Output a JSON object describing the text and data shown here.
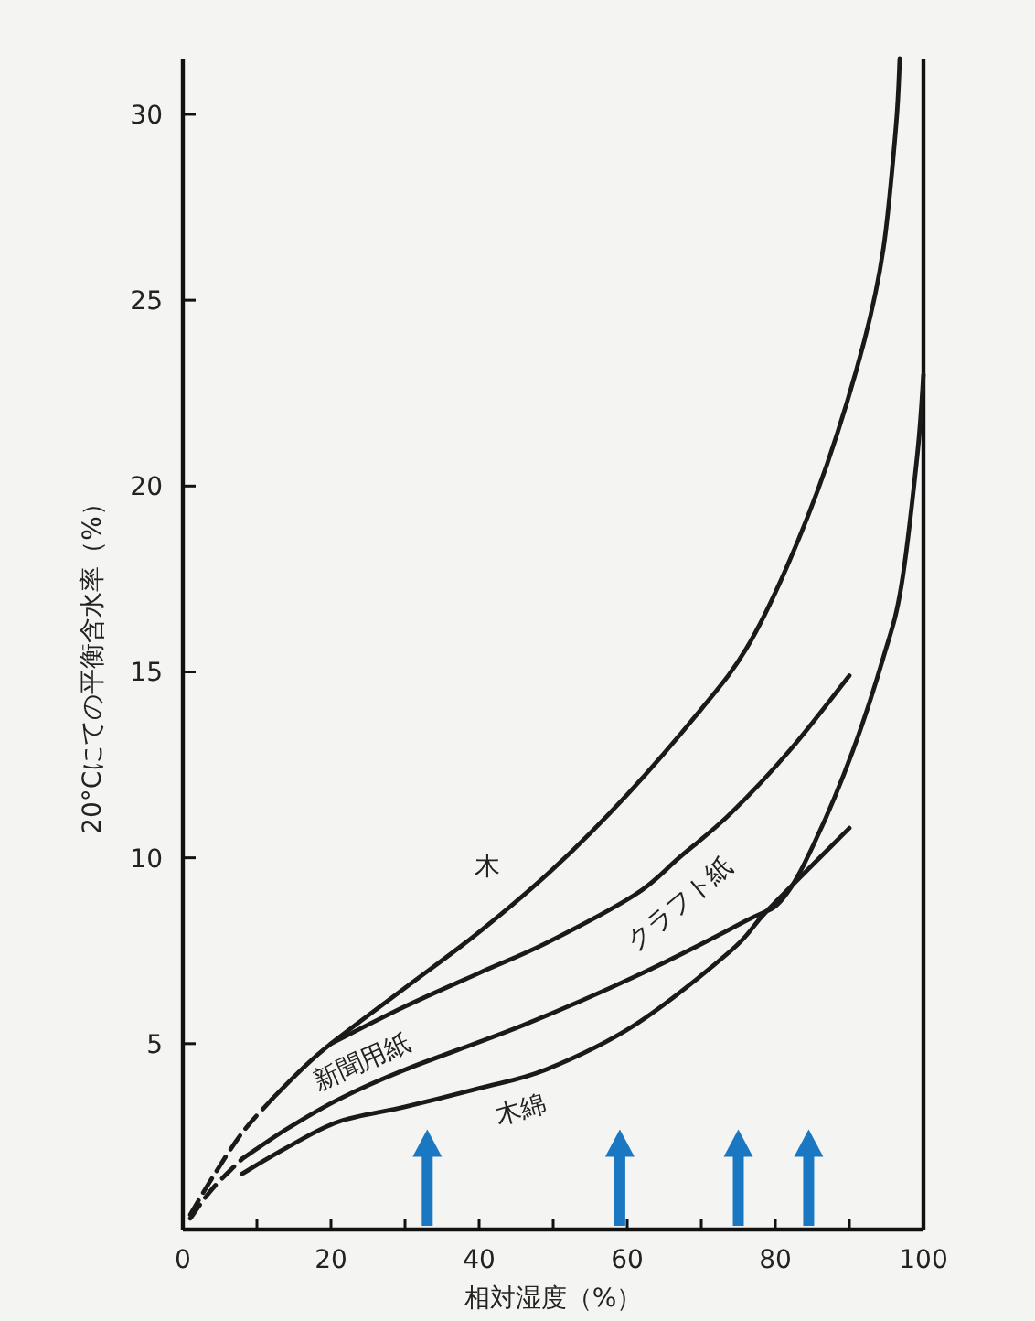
{
  "chart_data": {
    "type": "line",
    "xlabel": "相対湿度（%）",
    "ylabel": "20°Cにての平衡含水率（%）",
    "xlim": [
      0,
      100
    ],
    "ylim": [
      0,
      31.5
    ],
    "xticks": [
      0,
      {
        "value": 10,
        "label": null
      },
      20,
      {
        "value": 30,
        "label": null
      },
      40,
      {
        "value": 50,
        "label": null
      },
      60,
      {
        "value": 70,
        "label": null
      },
      80,
      {
        "value": 90,
        "label": null
      },
      100
    ],
    "yticks": [
      5,
      10,
      15,
      20,
      25,
      30
    ],
    "grid": false,
    "marker": "none",
    "series": [
      {
        "color": "#1a1a1a",
        "line_style": "dashed",
        "x": [
          1,
          4,
          8,
          12
        ],
        "values": [
          0.4,
          1.4,
          2.6,
          3.5
        ]
      },
      {
        "name": "木",
        "color": "#1a1a1a",
        "line_style": "solid",
        "x": [
          12,
          16,
          20,
          30,
          40,
          50,
          60,
          70,
          76,
          81.5,
          87,
          92,
          94.6,
          96.3,
          96.8
        ],
        "values": [
          3.5,
          4.3,
          5.0,
          6.5,
          8.0,
          9.7,
          11.7,
          14.0,
          15.6,
          17.8,
          20.6,
          23.9,
          26.4,
          29.7,
          31.5
        ]
      },
      {
        "name": "クラフト紙",
        "color": "#1a1a1a",
        "line_style": "solid",
        "x": [
          20,
          30,
          40,
          49,
          61,
          67,
          74,
          82,
          90
        ],
        "values": [
          5.0,
          6.0,
          6.9,
          7.7,
          9.0,
          10.0,
          11.2,
          12.9,
          14.9
        ]
      },
      {
        "color": "#1a1a1a",
        "line_style": "dashed",
        "x": [
          1,
          4,
          8
        ],
        "values": [
          0.3,
          1.1,
          1.9
        ]
      },
      {
        "name": "新聞用紙",
        "color": "#1a1a1a",
        "line_style": "solid",
        "x": [
          8,
          14,
          21,
          30,
          46,
          61,
          76,
          81,
          85.5,
          90.5,
          94.6,
          97,
          99.2,
          100
        ],
        "values": [
          1.9,
          2.7,
          3.5,
          4.3,
          5.5,
          6.8,
          8.3,
          8.9,
          10.5,
          12.9,
          15.4,
          17.3,
          20.9,
          23
        ]
      },
      {
        "name": "木綿",
        "color": "#1a1a1a",
        "line_style": "solid",
        "x": [
          8,
          14,
          21,
          30,
          40,
          49,
          61,
          74,
          79,
          90
        ],
        "values": [
          1.5,
          2.2,
          2.9,
          3.3,
          3.8,
          4.3,
          5.5,
          7.5,
          8.6,
          10.8
        ]
      },
      {
        "type": "scatter",
        "marker": "triangle",
        "color": "#1a78c2",
        "x": [
          33,
          59,
          75,
          84.5
        ],
        "values": [
          2.3,
          2.3,
          2.3,
          2.3
        ]
      }
    ]
  }
}
